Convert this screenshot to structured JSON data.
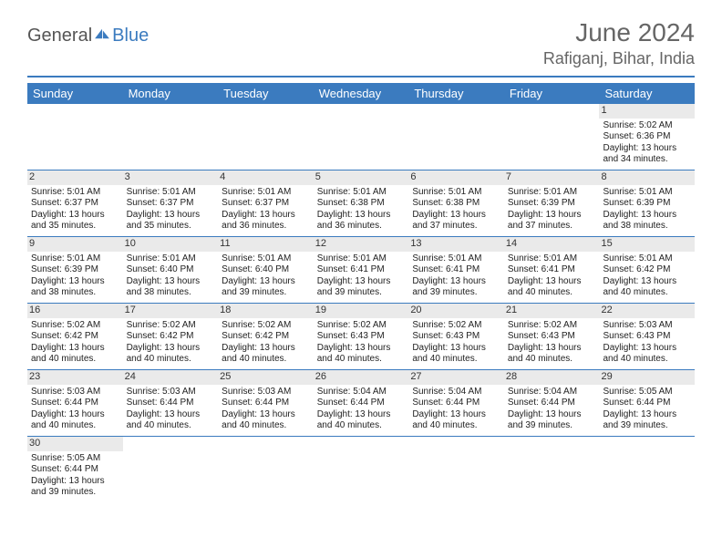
{
  "brand": {
    "general": "General",
    "blue": "Blue"
  },
  "header": {
    "month": "June 2024",
    "location": "Rafiganj, Bihar, India"
  },
  "colors": {
    "accent": "#3b7bbf",
    "shade": "#eaeaea",
    "text": "#333333"
  },
  "weekdays": [
    "Sunday",
    "Monday",
    "Tuesday",
    "Wednesday",
    "Thursday",
    "Friday",
    "Saturday"
  ],
  "weeks": [
    [
      null,
      null,
      null,
      null,
      null,
      null,
      {
        "n": "1",
        "sr": "Sunrise: 5:02 AM",
        "ss": "Sunset: 6:36 PM",
        "d1": "Daylight: 13 hours",
        "d2": "and 34 minutes."
      }
    ],
    [
      {
        "n": "2",
        "sr": "Sunrise: 5:01 AM",
        "ss": "Sunset: 6:37 PM",
        "d1": "Daylight: 13 hours",
        "d2": "and 35 minutes."
      },
      {
        "n": "3",
        "sr": "Sunrise: 5:01 AM",
        "ss": "Sunset: 6:37 PM",
        "d1": "Daylight: 13 hours",
        "d2": "and 35 minutes."
      },
      {
        "n": "4",
        "sr": "Sunrise: 5:01 AM",
        "ss": "Sunset: 6:37 PM",
        "d1": "Daylight: 13 hours",
        "d2": "and 36 minutes."
      },
      {
        "n": "5",
        "sr": "Sunrise: 5:01 AM",
        "ss": "Sunset: 6:38 PM",
        "d1": "Daylight: 13 hours",
        "d2": "and 36 minutes."
      },
      {
        "n": "6",
        "sr": "Sunrise: 5:01 AM",
        "ss": "Sunset: 6:38 PM",
        "d1": "Daylight: 13 hours",
        "d2": "and 37 minutes."
      },
      {
        "n": "7",
        "sr": "Sunrise: 5:01 AM",
        "ss": "Sunset: 6:39 PM",
        "d1": "Daylight: 13 hours",
        "d2": "and 37 minutes."
      },
      {
        "n": "8",
        "sr": "Sunrise: 5:01 AM",
        "ss": "Sunset: 6:39 PM",
        "d1": "Daylight: 13 hours",
        "d2": "and 38 minutes."
      }
    ],
    [
      {
        "n": "9",
        "sr": "Sunrise: 5:01 AM",
        "ss": "Sunset: 6:39 PM",
        "d1": "Daylight: 13 hours",
        "d2": "and 38 minutes."
      },
      {
        "n": "10",
        "sr": "Sunrise: 5:01 AM",
        "ss": "Sunset: 6:40 PM",
        "d1": "Daylight: 13 hours",
        "d2": "and 38 minutes."
      },
      {
        "n": "11",
        "sr": "Sunrise: 5:01 AM",
        "ss": "Sunset: 6:40 PM",
        "d1": "Daylight: 13 hours",
        "d2": "and 39 minutes."
      },
      {
        "n": "12",
        "sr": "Sunrise: 5:01 AM",
        "ss": "Sunset: 6:41 PM",
        "d1": "Daylight: 13 hours",
        "d2": "and 39 minutes."
      },
      {
        "n": "13",
        "sr": "Sunrise: 5:01 AM",
        "ss": "Sunset: 6:41 PM",
        "d1": "Daylight: 13 hours",
        "d2": "and 39 minutes."
      },
      {
        "n": "14",
        "sr": "Sunrise: 5:01 AM",
        "ss": "Sunset: 6:41 PM",
        "d1": "Daylight: 13 hours",
        "d2": "and 40 minutes."
      },
      {
        "n": "15",
        "sr": "Sunrise: 5:01 AM",
        "ss": "Sunset: 6:42 PM",
        "d1": "Daylight: 13 hours",
        "d2": "and 40 minutes."
      }
    ],
    [
      {
        "n": "16",
        "sr": "Sunrise: 5:02 AM",
        "ss": "Sunset: 6:42 PM",
        "d1": "Daylight: 13 hours",
        "d2": "and 40 minutes."
      },
      {
        "n": "17",
        "sr": "Sunrise: 5:02 AM",
        "ss": "Sunset: 6:42 PM",
        "d1": "Daylight: 13 hours",
        "d2": "and 40 minutes."
      },
      {
        "n": "18",
        "sr": "Sunrise: 5:02 AM",
        "ss": "Sunset: 6:42 PM",
        "d1": "Daylight: 13 hours",
        "d2": "and 40 minutes."
      },
      {
        "n": "19",
        "sr": "Sunrise: 5:02 AM",
        "ss": "Sunset: 6:43 PM",
        "d1": "Daylight: 13 hours",
        "d2": "and 40 minutes."
      },
      {
        "n": "20",
        "sr": "Sunrise: 5:02 AM",
        "ss": "Sunset: 6:43 PM",
        "d1": "Daylight: 13 hours",
        "d2": "and 40 minutes."
      },
      {
        "n": "21",
        "sr": "Sunrise: 5:02 AM",
        "ss": "Sunset: 6:43 PM",
        "d1": "Daylight: 13 hours",
        "d2": "and 40 minutes."
      },
      {
        "n": "22",
        "sr": "Sunrise: 5:03 AM",
        "ss": "Sunset: 6:43 PM",
        "d1": "Daylight: 13 hours",
        "d2": "and 40 minutes."
      }
    ],
    [
      {
        "n": "23",
        "sr": "Sunrise: 5:03 AM",
        "ss": "Sunset: 6:44 PM",
        "d1": "Daylight: 13 hours",
        "d2": "and 40 minutes."
      },
      {
        "n": "24",
        "sr": "Sunrise: 5:03 AM",
        "ss": "Sunset: 6:44 PM",
        "d1": "Daylight: 13 hours",
        "d2": "and 40 minutes."
      },
      {
        "n": "25",
        "sr": "Sunrise: 5:03 AM",
        "ss": "Sunset: 6:44 PM",
        "d1": "Daylight: 13 hours",
        "d2": "and 40 minutes."
      },
      {
        "n": "26",
        "sr": "Sunrise: 5:04 AM",
        "ss": "Sunset: 6:44 PM",
        "d1": "Daylight: 13 hours",
        "d2": "and 40 minutes."
      },
      {
        "n": "27",
        "sr": "Sunrise: 5:04 AM",
        "ss": "Sunset: 6:44 PM",
        "d1": "Daylight: 13 hours",
        "d2": "and 40 minutes."
      },
      {
        "n": "28",
        "sr": "Sunrise: 5:04 AM",
        "ss": "Sunset: 6:44 PM",
        "d1": "Daylight: 13 hours",
        "d2": "and 39 minutes."
      },
      {
        "n": "29",
        "sr": "Sunrise: 5:05 AM",
        "ss": "Sunset: 6:44 PM",
        "d1": "Daylight: 13 hours",
        "d2": "and 39 minutes."
      }
    ],
    [
      {
        "n": "30",
        "sr": "Sunrise: 5:05 AM",
        "ss": "Sunset: 6:44 PM",
        "d1": "Daylight: 13 hours",
        "d2": "and 39 minutes."
      },
      null,
      null,
      null,
      null,
      null,
      null
    ]
  ]
}
